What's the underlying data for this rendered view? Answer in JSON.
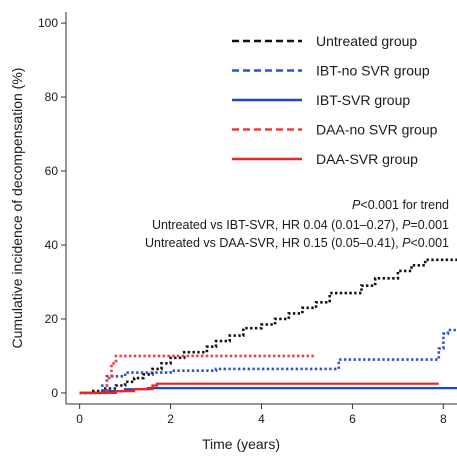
{
  "chart_data": {
    "type": "line",
    "xlabel": "Time (years)",
    "ylabel": "Cumulative incidence of decompensation (%)",
    "xlim": [
      -0.3,
      8.3
    ],
    "ylim": [
      -3,
      103
    ],
    "xticks": [
      0,
      2,
      4,
      6,
      8
    ],
    "yticks": [
      0,
      20,
      40,
      60,
      80,
      100
    ],
    "legend_position": "top-right",
    "grid": false,
    "series": [
      {
        "name": "Untreated group",
        "color": "#111111",
        "style": "dashed",
        "step_points": [
          [
            0.0,
            0
          ],
          [
            0.3,
            0.5
          ],
          [
            0.5,
            1.2
          ],
          [
            0.8,
            2
          ],
          [
            1.0,
            3
          ],
          [
            1.2,
            4
          ],
          [
            1.4,
            5
          ],
          [
            1.6,
            6.5
          ],
          [
            1.8,
            8
          ],
          [
            2.0,
            9.5
          ],
          [
            2.3,
            11
          ],
          [
            2.8,
            12.5
          ],
          [
            3.0,
            14
          ],
          [
            3.3,
            15.5
          ],
          [
            3.6,
            17.5
          ],
          [
            4.0,
            18.5
          ],
          [
            4.3,
            20
          ],
          [
            4.6,
            21.5
          ],
          [
            4.9,
            23
          ],
          [
            5.2,
            24.5
          ],
          [
            5.5,
            27
          ],
          [
            6.0,
            27
          ],
          [
            6.2,
            29
          ],
          [
            6.5,
            31
          ],
          [
            7.0,
            33
          ],
          [
            7.3,
            34.5
          ],
          [
            7.6,
            36
          ],
          [
            8.3,
            36
          ]
        ]
      },
      {
        "name": "IBT-no SVR group",
        "color": "#2b4fd6",
        "style": "dashed",
        "step_points": [
          [
            0.0,
            0
          ],
          [
            0.5,
            2
          ],
          [
            0.6,
            4.5
          ],
          [
            1.0,
            5.5
          ],
          [
            1.5,
            5.5
          ],
          [
            2.0,
            6
          ],
          [
            3.0,
            6.5
          ],
          [
            5.7,
            9
          ],
          [
            7.8,
            9
          ],
          [
            7.9,
            12
          ],
          [
            8.0,
            16
          ],
          [
            8.1,
            17
          ],
          [
            8.3,
            17
          ]
        ]
      },
      {
        "name": "IBT-SVR group",
        "color": "#1f48c8",
        "style": "solid",
        "step_points": [
          [
            0.0,
            0
          ],
          [
            0.5,
            0.5
          ],
          [
            1.0,
            1
          ],
          [
            1.5,
            1.3
          ],
          [
            8.3,
            1.3
          ]
        ]
      },
      {
        "name": "DAA-no SVR group",
        "color": "#ef3b3b",
        "style": "dashed",
        "step_points": [
          [
            0.0,
            0
          ],
          [
            0.6,
            4
          ],
          [
            0.7,
            8
          ],
          [
            0.8,
            10
          ],
          [
            5.2,
            10
          ]
        ]
      },
      {
        "name": "DAA-SVR group",
        "color": "#ee2222",
        "style": "solid",
        "step_points": [
          [
            0.0,
            0
          ],
          [
            0.8,
            0.5
          ],
          [
            1.2,
            1
          ],
          [
            1.6,
            2
          ],
          [
            1.7,
            2.5
          ],
          [
            7.9,
            2.5
          ]
        ]
      }
    ],
    "annotations": [
      {
        "italic": "P",
        "text": "<0.001 for trend"
      },
      {
        "text": "Untreated vs IBT-SVR, HR 0.04 (0.01–0.27), ",
        "italic": "P",
        "tail": "=0.001"
      },
      {
        "text": "Untreated vs DAA-SVR, HR 0.15 (0.05–0.41), ",
        "italic": "P",
        "tail": "<0.001"
      }
    ]
  }
}
